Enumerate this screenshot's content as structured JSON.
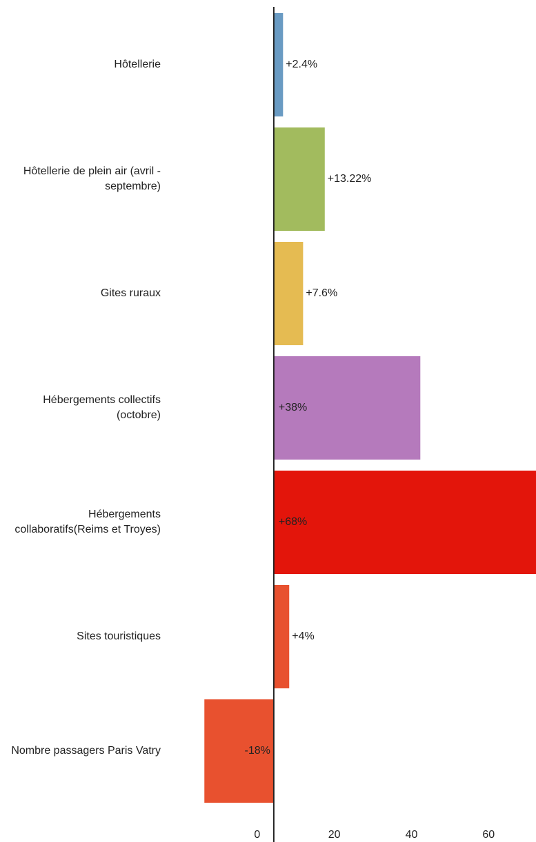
{
  "chart_data": {
    "type": "barh",
    "categories": [
      "Hôtellerie",
      "Hôtellerie de plein air (avril - septembre)",
      "Gites ruraux",
      "Hébergements collectifs (octobre)",
      "Hébergements collaboratifs(Reims et Troyes)",
      "Sites touristiques",
      "Nombre passagers Paris Vatry"
    ],
    "values": [
      2.4,
      13.22,
      7.6,
      38,
      68,
      4,
      -18
    ],
    "value_labels": [
      "+2.4%",
      "+13.22%",
      "+7.6%",
      "+38%",
      "+68%",
      "+4%",
      "-18%"
    ],
    "colors": [
      "#6a9bc3",
      "#a2bb5e",
      "#e5bb52",
      "#b57abc",
      "#e3150b",
      "#e8512f",
      "#e8512f"
    ],
    "xlim": [
      -71,
      68
    ],
    "xticks": [
      0,
      20,
      40,
      60
    ],
    "grid": false
  }
}
